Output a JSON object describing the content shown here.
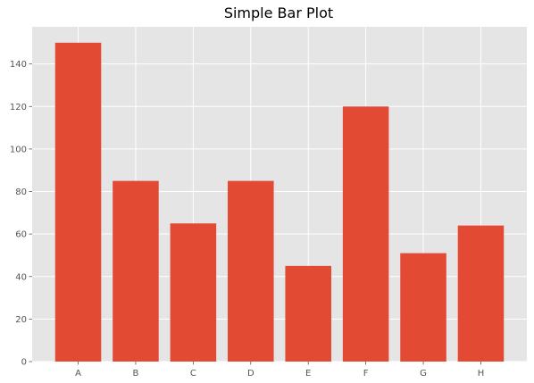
{
  "chart_data": {
    "type": "bar",
    "title": "Simple Bar Plot",
    "xlabel": "",
    "ylabel": "",
    "categories": [
      "A",
      "B",
      "C",
      "D",
      "E",
      "F",
      "G",
      "H"
    ],
    "values": [
      150,
      85,
      65,
      85,
      45,
      120,
      51,
      64
    ],
    "ylim": [
      0,
      157.5
    ],
    "yticks": [
      0,
      20,
      40,
      60,
      80,
      100,
      120,
      140
    ],
    "grid": true,
    "bar_color": "#E24A33",
    "background_color": "#E5E5E5",
    "grid_color": "#FFFFFF"
  }
}
